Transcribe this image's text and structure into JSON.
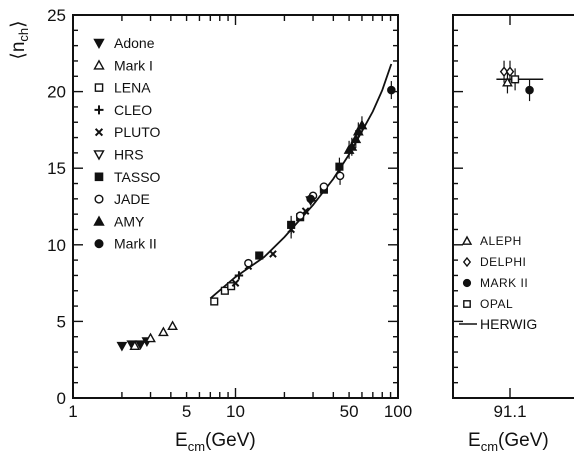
{
  "chart_data": [
    {
      "type": "scatter",
      "title": "",
      "ylabel": "⟨n",
      "ylabel_sub": "ch",
      "ylabel_close": "⟩",
      "xlabel": "E",
      "xlabel_sub": "cm",
      "xlabel_unit": "(GeV)",
      "xscale": "log",
      "xlim": [
        1,
        100
      ],
      "ylim": [
        0,
        25
      ],
      "xticks": [
        {
          "value": 1,
          "label": "1"
        },
        {
          "value": 5,
          "label": "5"
        },
        {
          "value": 10,
          "label": "10"
        },
        {
          "value": 50,
          "label": "50"
        },
        {
          "value": 100,
          "label": "100"
        }
      ],
      "yticks": [
        {
          "value": 0,
          "label": "0"
        },
        {
          "value": 5,
          "label": "5"
        },
        {
          "value": 10,
          "label": "10"
        },
        {
          "value": 15,
          "label": "15"
        },
        {
          "value": 20,
          "label": "20"
        },
        {
          "value": 25,
          "label": "25"
        }
      ],
      "legend_position": "top-left",
      "series": [
        {
          "name": "Adone",
          "marker": "triangle-down-filled",
          "points": [
            [
              2.0,
              3.4
            ],
            [
              2.3,
              3.5
            ],
            [
              2.6,
              3.5
            ],
            [
              2.85,
              3.7
            ]
          ]
        },
        {
          "name": "Mark I",
          "marker": "triangle-up-open",
          "points": [
            [
              2.4,
              3.4
            ],
            [
              3.0,
              3.9
            ],
            [
              3.6,
              4.3
            ],
            [
              4.1,
              4.7
            ]
          ]
        },
        {
          "name": "LENA",
          "marker": "square-open",
          "points": [
            [
              7.4,
              6.3
            ],
            [
              8.6,
              7.0
            ],
            [
              9.4,
              7.3
            ]
          ]
        },
        {
          "name": "CLEO",
          "marker": "plus",
          "points": [
            [
              10.5,
              8.0
            ]
          ]
        },
        {
          "name": "PLUTO",
          "marker": "cross",
          "points": [
            [
              10.0,
              7.5
            ],
            [
              12.0,
              8.6
            ],
            [
              17.0,
              9.4
            ],
            [
              22.0,
              11.0
            ],
            [
              27.0,
              12.2
            ],
            [
              30.0,
              13.0
            ]
          ]
        },
        {
          "name": "HRS",
          "marker": "triangle-down-open",
          "points": [
            [
              29.0,
              12.9
            ]
          ]
        },
        {
          "name": "TASSO",
          "marker": "square-filled",
          "points": [
            [
              14.0,
              9.3
            ],
            [
              22.0,
              11.3
            ],
            [
              25.0,
              11.8
            ],
            [
              35.0,
              13.6
            ],
            [
              43.6,
              15.1
            ]
          ]
        },
        {
          "name": "JADE",
          "marker": "circle-open",
          "points": [
            [
              12.0,
              8.8
            ],
            [
              25.0,
              11.9
            ],
            [
              30.0,
              13.2
            ],
            [
              35.0,
              13.8
            ],
            [
              44.0,
              14.5
            ]
          ]
        },
        {
          "name": "AMY",
          "marker": "triangle-up-filled",
          "points": [
            [
              50.0,
              16.2
            ],
            [
              52.0,
              16.4
            ],
            [
              55.0,
              16.9
            ],
            [
              57.0,
              17.4
            ],
            [
              60.0,
              17.8
            ]
          ]
        },
        {
          "name": "Mark II",
          "marker": "circle-filled",
          "points": [
            [
              29.0,
              13.0
            ],
            [
              91.0,
              20.1
            ]
          ]
        }
      ],
      "curve": {
        "name": "",
        "x": [
          7,
          10,
          15,
          20,
          30,
          40,
          50,
          60,
          70,
          80,
          91
        ],
        "y": [
          6.5,
          7.9,
          9.2,
          10.5,
          12.6,
          14.3,
          15.9,
          17.4,
          18.7,
          20.1,
          21.8
        ]
      }
    },
    {
      "type": "scatter",
      "title": "",
      "xlabel": "E",
      "xlabel_sub": "cm",
      "xlabel_unit": "(GeV)",
      "ylim": [
        0,
        25
      ],
      "xticks": [
        {
          "value": 91.1,
          "label": "91.1"
        }
      ],
      "legend_position": "bottom-left",
      "series": [
        {
          "name": "ALEPH",
          "marker": "triangle-up-open",
          "points": [
            [
              90.8,
              20.6
            ]
          ]
        },
        {
          "name": "DELPHI",
          "marker": "diamond-open",
          "points": [
            [
              90.4,
              21.3
            ],
            [
              91.1,
              21.3
            ]
          ]
        },
        {
          "name": "MARK II",
          "marker": "circle-filled",
          "points": [
            [
              93.4,
              20.1
            ]
          ]
        },
        {
          "name": "OPAL",
          "marker": "square-open",
          "points": [
            [
              91.7,
              20.8
            ]
          ]
        }
      ],
      "curve": {
        "name": "HERWIG",
        "x": [
          89.5,
          95.0
        ],
        "y": [
          20.8,
          20.8
        ]
      }
    }
  ]
}
